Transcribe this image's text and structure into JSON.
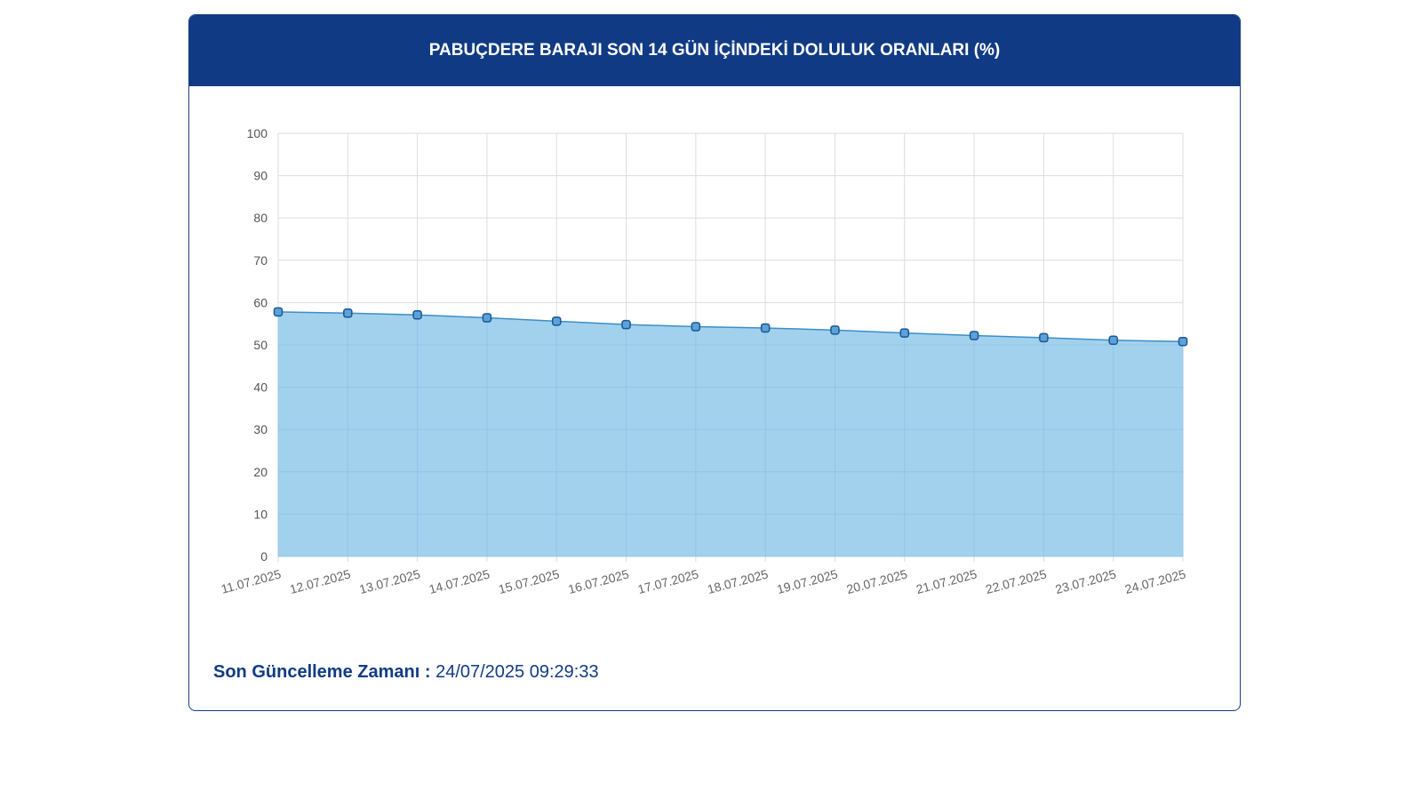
{
  "header": {
    "title": "PABUÇDERE BARAJI SON 14 GÜN İÇİNDEKİ DOLULUK ORANLARI (%)"
  },
  "footer": {
    "label": "Son Güncelleme Zamanı :",
    "value": " 24/07/2025 09:29:33"
  },
  "colors": {
    "header_bg": "#103b84",
    "area_fill": "#9dcfed",
    "line": "#3d8ec6",
    "marker_fill": "#5aa3d8",
    "marker_stroke": "#1d5593",
    "grid": "#dddddd",
    "footer_text": "#103b84"
  },
  "chart_data": {
    "type": "area",
    "categories": [
      "11.07.2025",
      "12.07.2025",
      "13.07.2025",
      "14.07.2025",
      "15.07.2025",
      "16.07.2025",
      "17.07.2025",
      "18.07.2025",
      "19.07.2025",
      "20.07.2025",
      "21.07.2025",
      "22.07.2025",
      "23.07.2025",
      "24.07.2025"
    ],
    "series": [
      {
        "values": [
          57.8,
          57.5,
          57.1,
          56.4,
          55.6,
          54.8,
          54.3,
          54.0,
          53.5,
          52.8,
          52.2,
          51.7,
          51.1,
          50.8
        ]
      }
    ],
    "ylim": [
      0,
      100
    ],
    "yticks": [
      0,
      10,
      20,
      30,
      40,
      50,
      60,
      70,
      80,
      90,
      100
    ],
    "grid": true,
    "legend": "none",
    "xlabel": "",
    "ylabel": ""
  }
}
